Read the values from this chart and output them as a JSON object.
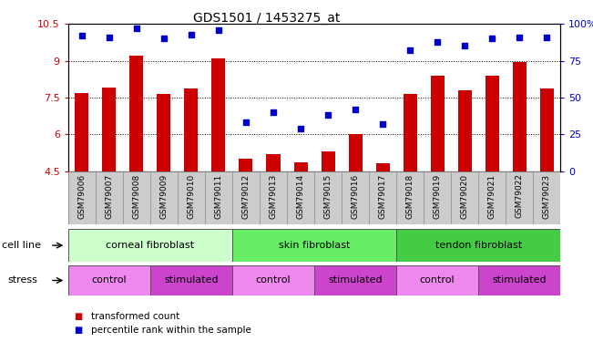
{
  "title": "GDS1501 / 1453275_at",
  "samples": [
    "GSM79006",
    "GSM79007",
    "GSM79008",
    "GSM79009",
    "GSM79010",
    "GSM79011",
    "GSM79012",
    "GSM79013",
    "GSM79014",
    "GSM79015",
    "GSM79016",
    "GSM79017",
    "GSM79018",
    "GSM79019",
    "GSM79020",
    "GSM79021",
    "GSM79022",
    "GSM79023"
  ],
  "bar_values": [
    7.7,
    7.9,
    9.2,
    7.65,
    7.85,
    9.1,
    5.0,
    5.2,
    4.85,
    5.3,
    6.0,
    4.8,
    7.65,
    8.4,
    7.8,
    8.4,
    8.95,
    7.85
  ],
  "dot_values": [
    92,
    91,
    97,
    90,
    93,
    96,
    33,
    40,
    29,
    38,
    42,
    32,
    82,
    88,
    85,
    90,
    91,
    91
  ],
  "ylim_left": [
    4.5,
    10.5
  ],
  "ylim_right": [
    0,
    100
  ],
  "yticks_left": [
    4.5,
    6.0,
    7.5,
    9.0,
    10.5
  ],
  "ytick_labels_left": [
    "4.5",
    "6",
    "7.5",
    "9",
    "10.5"
  ],
  "yticks_right": [
    0,
    25,
    50,
    75,
    100
  ],
  "ytick_labels_right": [
    "0",
    "25",
    "50",
    "75",
    "100%"
  ],
  "bar_color": "#cc0000",
  "dot_color": "#0000cc",
  "grid_color": "#000000",
  "cell_line_groups": [
    {
      "label": "corneal fibroblast",
      "start": 0,
      "end": 6,
      "color": "#ccffcc"
    },
    {
      "label": "skin fibroblast",
      "start": 6,
      "end": 12,
      "color": "#66ee66"
    },
    {
      "label": "tendon fibroblast",
      "start": 12,
      "end": 18,
      "color": "#44cc44"
    }
  ],
  "stress_groups": [
    {
      "label": "control",
      "start": 0,
      "end": 3,
      "color": "#ee88ee"
    },
    {
      "label": "stimulated",
      "start": 3,
      "end": 6,
      "color": "#cc44cc"
    },
    {
      "label": "control",
      "start": 6,
      "end": 9,
      "color": "#ee88ee"
    },
    {
      "label": "stimulated",
      "start": 9,
      "end": 12,
      "color": "#cc44cc"
    },
    {
      "label": "control",
      "start": 12,
      "end": 15,
      "color": "#ee88ee"
    },
    {
      "label": "stimulated",
      "start": 15,
      "end": 18,
      "color": "#cc44cc"
    }
  ],
  "legend_items": [
    {
      "color": "#cc0000",
      "label": "transformed count"
    },
    {
      "color": "#0000cc",
      "label": "percentile rank within the sample"
    }
  ],
  "cell_line_label": "cell line",
  "stress_label": "stress",
  "title_fontsize": 10,
  "tick_fontsize": 8,
  "bar_width": 0.5,
  "xtick_bg": "#cccccc"
}
